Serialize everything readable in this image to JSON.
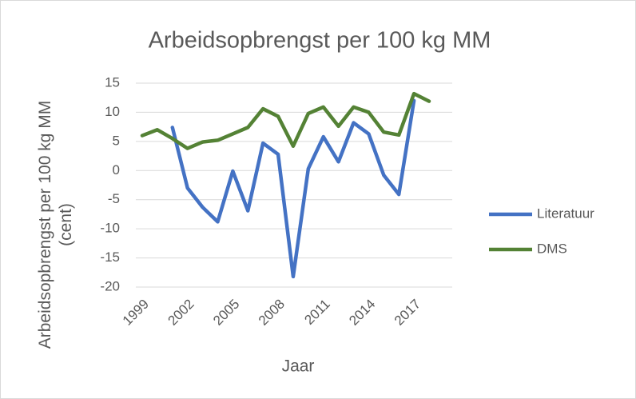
{
  "chart_data": {
    "type": "line",
    "title": "Arbeidsopbrengst per 100 kg MM",
    "xlabel": "Jaar",
    "ylabel": "Arbeidsopbrengst per 100 kg MM (cent)",
    "x": [
      1999,
      2000,
      2001,
      2002,
      2003,
      2004,
      2005,
      2006,
      2007,
      2008,
      2009,
      2010,
      2011,
      2012,
      2013,
      2014,
      2015,
      2016,
      2017,
      2018
    ],
    "series": [
      {
        "name": "Literatuur",
        "color": "#4472c4",
        "values": [
          null,
          null,
          7.4,
          -3.0,
          -6.3,
          -8.8,
          -0.1,
          -6.9,
          4.7,
          2.8,
          -18.2,
          0.3,
          5.8,
          1.5,
          8.2,
          6.3,
          -0.8,
          -4.1,
          12.0,
          null
        ]
      },
      {
        "name": "DMS",
        "color": "#548235",
        "values": [
          6.0,
          7.0,
          5.5,
          3.8,
          4.9,
          5.2,
          6.3,
          7.4,
          10.6,
          9.3,
          4.2,
          9.8,
          10.9,
          7.6,
          10.9,
          10.0,
          6.6,
          6.1,
          13.2,
          11.9
        ]
      }
    ],
    "xlim": [
      1999,
      2018
    ],
    "xticks": [
      1999,
      2002,
      2005,
      2008,
      2011,
      2014,
      2017
    ],
    "ylim": [
      -20,
      15
    ],
    "yticks": [
      -20,
      -15,
      -10,
      -5,
      0,
      5,
      10,
      15
    ],
    "grid": true,
    "legend": "right"
  }
}
